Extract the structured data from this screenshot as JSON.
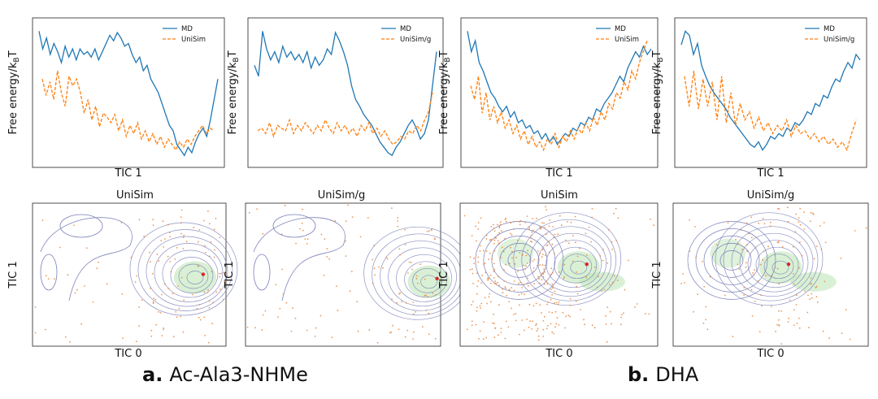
{
  "chart_data": [
    {
      "type": "line",
      "panel": "a-top-left",
      "xlabel": "TIC 1",
      "ylabel": "Free energy/k_BT",
      "legend": [
        "MD",
        "UniSim"
      ],
      "legend_position": "top-right",
      "grid": false,
      "series": [
        {
          "name": "MD",
          "style": "solid",
          "y": [
            0.95,
            0.82,
            0.9,
            0.78,
            0.86,
            0.8,
            0.72,
            0.84,
            0.76,
            0.82,
            0.74,
            0.82,
            0.78,
            0.8,
            0.76,
            0.82,
            0.74,
            0.8,
            0.86,
            0.92,
            0.88,
            0.94,
            0.9,
            0.84,
            0.86,
            0.78,
            0.72,
            0.76,
            0.66,
            0.7,
            0.6,
            0.55,
            0.5,
            0.42,
            0.34,
            0.26,
            0.22,
            0.12,
            0.08,
            0.04,
            0.1,
            0.06,
            0.14,
            0.2,
            0.24,
            0.18,
            0.3,
            0.45,
            0.6
          ]
        },
        {
          "name": "UniSim",
          "style": "dashed",
          "y": [
            0.6,
            0.48,
            0.58,
            0.45,
            0.66,
            0.5,
            0.4,
            0.62,
            0.55,
            0.6,
            0.5,
            0.35,
            0.45,
            0.3,
            0.4,
            0.25,
            0.35,
            0.32,
            0.28,
            0.34,
            0.22,
            0.3,
            0.18,
            0.26,
            0.2,
            0.28,
            0.16,
            0.22,
            0.14,
            0.2,
            0.12,
            0.18,
            0.1,
            0.16,
            0.12,
            0.08,
            0.14,
            0.1,
            0.16,
            0.12,
            0.18,
            0.22,
            0.26,
            0.2,
            0.24,
            0.22
          ]
        }
      ]
    },
    {
      "type": "line",
      "panel": "a-top-right",
      "xlabel": "",
      "ylabel": "Free energy/k_BT",
      "legend": [
        "MD",
        "UniSim/g"
      ],
      "legend_position": "top-right",
      "grid": false,
      "series": [
        {
          "name": "MD",
          "style": "solid",
          "y": [
            0.7,
            0.62,
            0.95,
            0.82,
            0.74,
            0.8,
            0.72,
            0.84,
            0.76,
            0.8,
            0.74,
            0.78,
            0.72,
            0.8,
            0.68,
            0.76,
            0.7,
            0.74,
            0.82,
            0.78,
            0.94,
            0.88,
            0.8,
            0.7,
            0.55,
            0.45,
            0.4,
            0.34,
            0.3,
            0.26,
            0.2,
            0.14,
            0.1,
            0.06,
            0.04,
            0.1,
            0.14,
            0.2,
            0.26,
            0.3,
            0.24,
            0.16,
            0.2,
            0.3,
            0.55,
            0.8
          ]
        },
        {
          "name": "UniSim/g",
          "style": "dashed",
          "y": [
            0.22,
            0.24,
            0.2,
            0.28,
            0.18,
            0.26,
            0.24,
            0.22,
            0.3,
            0.2,
            0.26,
            0.22,
            0.28,
            0.24,
            0.2,
            0.26,
            0.22,
            0.3,
            0.24,
            0.2,
            0.28,
            0.22,
            0.26,
            0.2,
            0.24,
            0.18,
            0.26,
            0.22,
            0.28,
            0.2,
            0.24,
            0.18,
            0.22,
            0.16,
            0.12,
            0.14,
            0.18,
            0.16,
            0.22,
            0.2,
            0.26,
            0.22,
            0.3,
            0.36,
            0.5
          ]
        }
      ]
    },
    {
      "type": "line",
      "panel": "b-top-left",
      "xlabel": "TIC 1",
      "ylabel": "Free energy/k_BT",
      "legend": [
        "MD",
        "UniSim"
      ],
      "legend_position": "top-right",
      "grid": false,
      "series": [
        {
          "name": "MD",
          "style": "solid",
          "y": [
            0.95,
            0.8,
            0.88,
            0.72,
            0.66,
            0.58,
            0.5,
            0.46,
            0.4,
            0.36,
            0.4,
            0.32,
            0.36,
            0.28,
            0.3,
            0.24,
            0.26,
            0.2,
            0.22,
            0.16,
            0.2,
            0.14,
            0.18,
            0.12,
            0.16,
            0.2,
            0.18,
            0.24,
            0.22,
            0.28,
            0.26,
            0.32,
            0.3,
            0.38,
            0.36,
            0.42,
            0.46,
            0.5,
            0.56,
            0.62,
            0.58,
            0.68,
            0.74,
            0.8,
            0.76,
            0.84,
            0.78,
            0.82
          ]
        },
        {
          "name": "UniSim",
          "style": "dashed",
          "y": [
            0.55,
            0.45,
            0.62,
            0.35,
            0.5,
            0.3,
            0.4,
            0.28,
            0.36,
            0.24,
            0.3,
            0.2,
            0.26,
            0.16,
            0.22,
            0.12,
            0.18,
            0.1,
            0.14,
            0.08,
            0.16,
            0.12,
            0.2,
            0.1,
            0.18,
            0.14,
            0.22,
            0.16,
            0.24,
            0.2,
            0.28,
            0.22,
            0.32,
            0.26,
            0.36,
            0.3,
            0.42,
            0.38,
            0.5,
            0.46,
            0.58,
            0.52,
            0.66,
            0.6,
            0.72,
            0.8,
            0.88
          ]
        }
      ]
    },
    {
      "type": "line",
      "panel": "b-top-right",
      "xlabel": "TIC 1",
      "ylabel": "Free energy/k_BT",
      "legend": [
        "MD",
        "UniSim/g"
      ],
      "legend_position": "top-right",
      "grid": false,
      "series": [
        {
          "name": "MD",
          "style": "solid",
          "y": [
            0.85,
            0.95,
            0.92,
            0.78,
            0.86,
            0.7,
            0.62,
            0.55,
            0.5,
            0.46,
            0.42,
            0.38,
            0.32,
            0.28,
            0.24,
            0.2,
            0.16,
            0.12,
            0.1,
            0.14,
            0.08,
            0.12,
            0.18,
            0.16,
            0.2,
            0.18,
            0.24,
            0.22,
            0.28,
            0.26,
            0.3,
            0.36,
            0.34,
            0.42,
            0.4,
            0.48,
            0.46,
            0.54,
            0.6,
            0.58,
            0.66,
            0.72,
            0.68,
            0.78,
            0.74
          ]
        },
        {
          "name": "UniSim/g",
          "style": "dashed",
          "y": [
            0.62,
            0.4,
            0.66,
            0.38,
            0.6,
            0.4,
            0.58,
            0.3,
            0.62,
            0.28,
            0.5,
            0.26,
            0.42,
            0.3,
            0.36,
            0.24,
            0.32,
            0.22,
            0.28,
            0.2,
            0.26,
            0.22,
            0.3,
            0.18,
            0.26,
            0.2,
            0.22,
            0.16,
            0.2,
            0.14,
            0.18,
            0.12,
            0.16,
            0.1,
            0.14,
            0.08,
            0.2,
            0.3
          ]
        }
      ]
    },
    {
      "type": "scatter",
      "panel": "a-bottom-left",
      "title": "UniSim",
      "xlabel": "TIC 0",
      "ylabel": "TIC 1",
      "overlay": "free-energy contours"
    },
    {
      "type": "scatter",
      "panel": "a-bottom-right",
      "title": "UniSim/g",
      "xlabel": "",
      "ylabel": "TIC 1",
      "overlay": "free-energy contours"
    },
    {
      "type": "scatter",
      "panel": "b-bottom-left",
      "title": "UniSim",
      "xlabel": "TIC 0",
      "ylabel": "TIC 1",
      "overlay": "free-energy contours"
    },
    {
      "type": "scatter",
      "panel": "b-bottom-right",
      "title": "UniSim/g",
      "xlabel": "TIC 0",
      "ylabel": "TIC 1",
      "overlay": "free-energy contours"
    }
  ],
  "ylabel_main": "Free energy/k",
  "ylabel_sub": "B",
  "ylabel_tail": "T",
  "captions": {
    "a": {
      "letter": "a.",
      "text": "Ac-Ala3-NHMe"
    },
    "b": {
      "letter": "b.",
      "text": "DHA"
    }
  },
  "colors": {
    "md": "#1f77b4",
    "unisim": "#ff7f0e",
    "contour": "#7a7fb8",
    "dot": "#e8843a",
    "center": "#d62728",
    "density": "#bfe6b8"
  }
}
